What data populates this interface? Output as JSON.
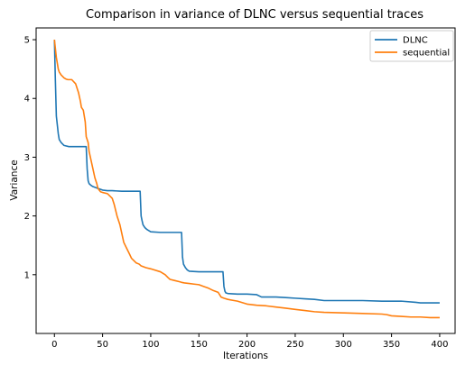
{
  "chart_data": {
    "type": "line",
    "title": "Comparison in variance of DLNC versus sequential traces",
    "xlabel": "Iterations",
    "ylabel": "Variance",
    "xlim": [
      -19,
      416
    ],
    "ylim": [
      0.0,
      5.2
    ],
    "xticks": [
      0,
      50,
      100,
      150,
      200,
      250,
      300,
      350,
      400
    ],
    "yticks": [
      1,
      2,
      3,
      4,
      5
    ],
    "grid": false,
    "legend_position": "top-right",
    "series": [
      {
        "name": "DLNC",
        "color": "#1f77b4",
        "x": [
          0,
          1,
          2,
          3,
          4,
          5,
          7,
          10,
          15,
          20,
          33,
          34,
          35,
          36,
          38,
          40,
          45,
          50,
          55,
          60,
          70,
          80,
          89,
          90,
          91,
          92,
          94,
          96,
          100,
          110,
          120,
          132,
          133,
          134,
          136,
          138,
          140,
          150,
          160,
          175,
          176,
          177,
          178,
          180,
          190,
          200,
          210,
          215,
          230,
          240,
          250,
          260,
          270,
          280,
          290,
          300,
          320,
          340,
          350,
          360,
          375,
          380,
          390,
          400
        ],
        "y": [
          5.0,
          4.3,
          3.7,
          3.55,
          3.4,
          3.3,
          3.25,
          3.2,
          3.18,
          3.18,
          3.18,
          2.8,
          2.6,
          2.55,
          2.52,
          2.5,
          2.47,
          2.44,
          2.43,
          2.43,
          2.42,
          2.42,
          2.42,
          2.0,
          1.92,
          1.85,
          1.8,
          1.77,
          1.73,
          1.72,
          1.72,
          1.72,
          1.3,
          1.18,
          1.12,
          1.08,
          1.06,
          1.05,
          1.05,
          1.05,
          0.8,
          0.72,
          0.69,
          0.68,
          0.67,
          0.67,
          0.66,
          0.62,
          0.62,
          0.61,
          0.6,
          0.59,
          0.58,
          0.56,
          0.56,
          0.56,
          0.56,
          0.55,
          0.55,
          0.55,
          0.53,
          0.52,
          0.52,
          0.52
        ]
      },
      {
        "name": "sequential",
        "color": "#ff7f0e",
        "x": [
          0,
          1,
          2,
          3,
          4,
          5,
          7,
          10,
          12,
          14,
          18,
          22,
          25,
          27,
          28,
          30,
          32,
          33,
          35,
          36,
          38,
          40,
          42,
          44,
          45,
          46,
          47,
          48,
          50,
          55,
          60,
          62,
          65,
          68,
          70,
          72,
          75,
          78,
          80,
          85,
          88,
          90,
          95,
          100,
          110,
          115,
          118,
          120,
          125,
          130,
          132,
          135,
          140,
          145,
          150,
          155,
          160,
          165,
          170,
          173,
          176,
          180,
          190,
          200,
          210,
          220,
          230,
          240,
          250,
          260,
          270,
          280,
          300,
          320,
          340,
          345,
          350,
          360,
          370,
          380,
          390,
          400
        ],
        "y": [
          5.0,
          4.85,
          4.7,
          4.6,
          4.5,
          4.45,
          4.4,
          4.35,
          4.33,
          4.32,
          4.32,
          4.25,
          4.1,
          3.95,
          3.85,
          3.8,
          3.6,
          3.35,
          3.25,
          3.1,
          2.95,
          2.8,
          2.65,
          2.55,
          2.48,
          2.45,
          2.43,
          2.41,
          2.4,
          2.38,
          2.3,
          2.2,
          2.0,
          1.85,
          1.7,
          1.55,
          1.45,
          1.35,
          1.28,
          1.2,
          1.18,
          1.15,
          1.12,
          1.1,
          1.05,
          1.0,
          0.95,
          0.92,
          0.9,
          0.88,
          0.87,
          0.86,
          0.85,
          0.84,
          0.83,
          0.8,
          0.77,
          0.73,
          0.7,
          0.62,
          0.6,
          0.58,
          0.55,
          0.5,
          0.48,
          0.47,
          0.45,
          0.43,
          0.41,
          0.39,
          0.37,
          0.36,
          0.35,
          0.34,
          0.33,
          0.32,
          0.3,
          0.29,
          0.28,
          0.28,
          0.27,
          0.27
        ]
      }
    ]
  }
}
